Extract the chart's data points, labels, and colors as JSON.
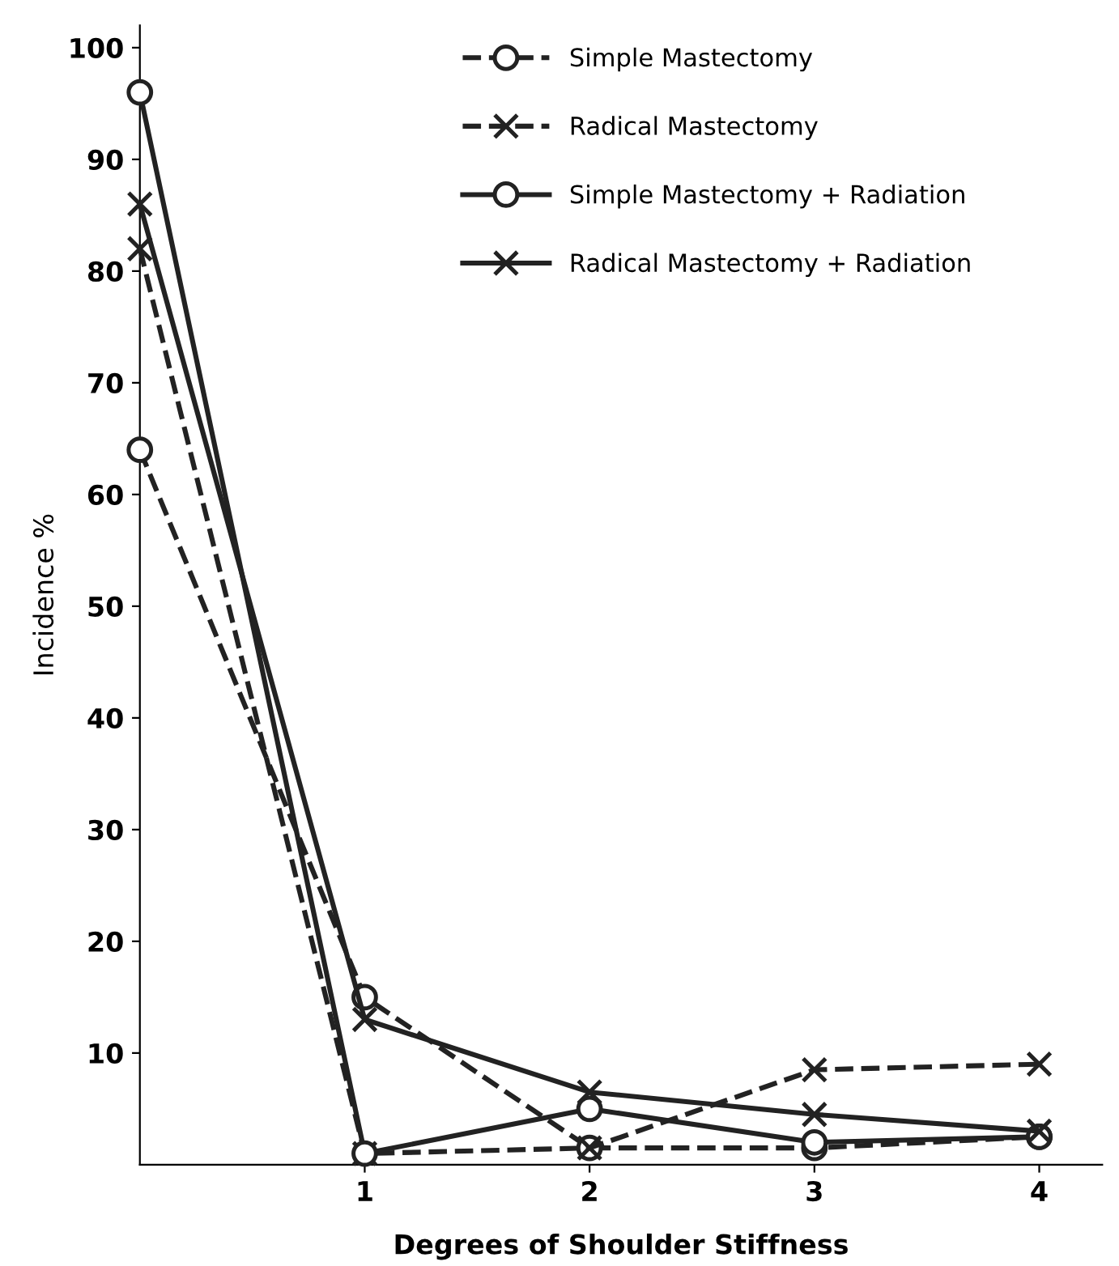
{
  "chart_data": {
    "type": "line",
    "xlabel": "Degrees of Shoulder Stiffness",
    "ylabel": "Incidence %",
    "x": [
      0,
      1,
      2,
      3,
      4
    ],
    "xlim": [
      0,
      4.28
    ],
    "xticks": [
      1,
      2,
      3,
      4
    ],
    "ylim": [
      0,
      102
    ],
    "yticks": [
      10,
      20,
      30,
      40,
      50,
      60,
      70,
      80,
      90,
      100
    ],
    "grid": false,
    "legend": "top",
    "series": [
      {
        "name": "Simple Mastectomy",
        "color": "#222222",
        "marker": "circle",
        "line_style": "dashed",
        "values": [
          64,
          15,
          1.5,
          1.5,
          2.5
        ]
      },
      {
        "name": "Radical Mastectomy",
        "color": "#222222",
        "marker": "cross",
        "line_style": "dashed",
        "values": [
          82,
          1,
          1.5,
          8.5,
          9
        ]
      },
      {
        "name": "Simple Mastectomy + Radiation",
        "color": "#222222",
        "marker": "circle",
        "line_style": "solid",
        "values": [
          96,
          1,
          5,
          2,
          2.5
        ]
      },
      {
        "name": "Radical Mastectomy + Radiation",
        "color": "#222222",
        "marker": "cross",
        "line_style": "solid",
        "values": [
          86,
          13,
          6.5,
          4.5,
          3
        ]
      }
    ]
  }
}
